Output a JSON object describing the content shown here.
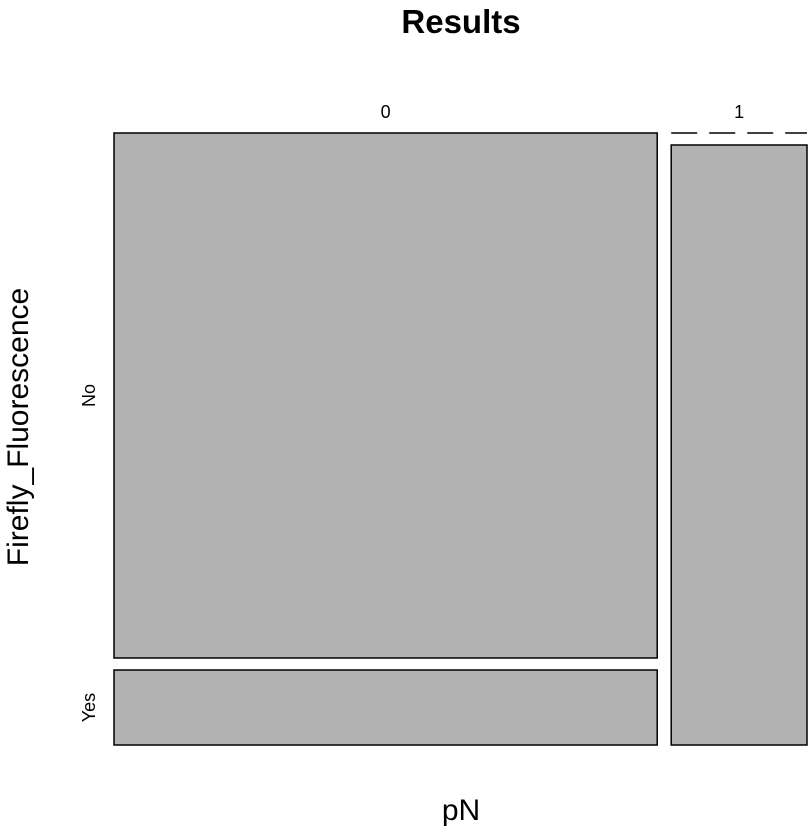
{
  "chart_data": {
    "type": "mosaic",
    "title": "Results",
    "xlabel": "pN",
    "ylabel": "Firefly_Fluorescence",
    "x_categories": [
      "0",
      "1"
    ],
    "y_categories": [
      "No",
      "Yes"
    ],
    "x_proportions": [
      0.8,
      0.2
    ],
    "conditional_proportions": [
      {
        "x": "0",
        "No": 0.875,
        "Yes": 0.125
      },
      {
        "x": "1",
        "No": 1.0,
        "Yes": 0.0
      }
    ],
    "fill_color": "#b2b2b2",
    "border_color": "#000000"
  }
}
